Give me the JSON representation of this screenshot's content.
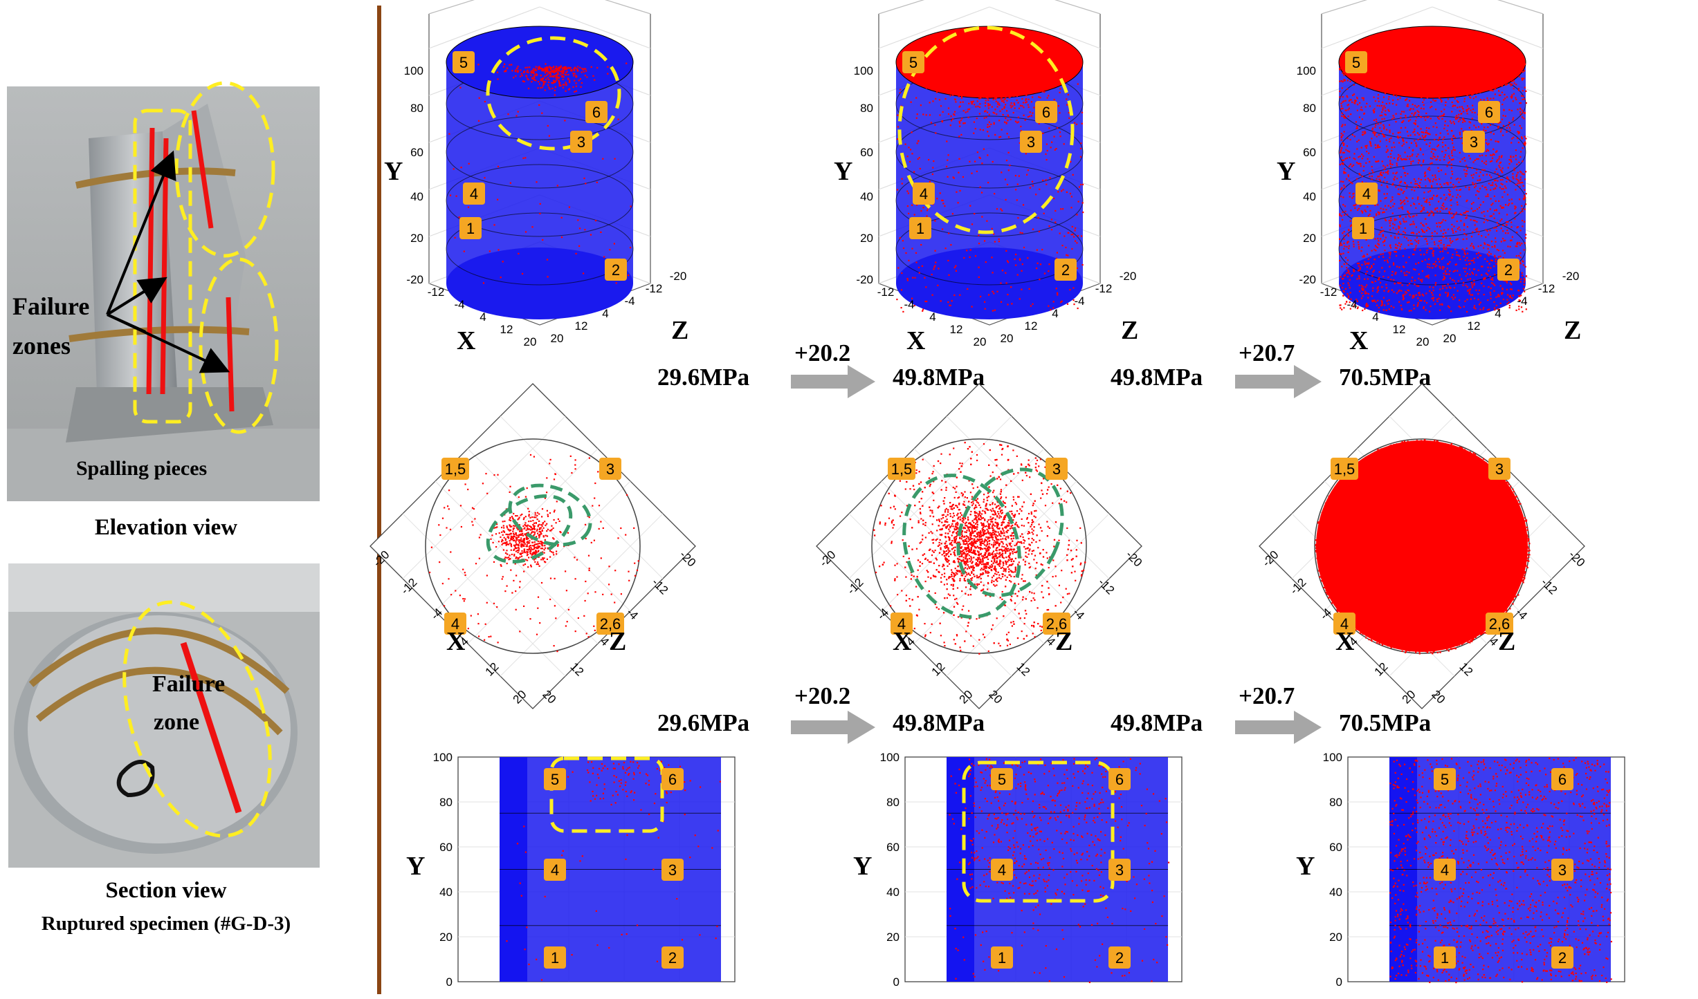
{
  "left_panel": {
    "failure_zones_line1": "Failure",
    "failure_zones_line2": "zones",
    "spalling": "Spalling pieces",
    "elevation_caption": "Elevation view",
    "failure_zone_line1": "Failure",
    "failure_zone_line2": "zone",
    "section_caption": "Section view",
    "specimen_caption": "Ruptured specimen (#G-D-3)"
  },
  "axes": {
    "x": "X",
    "y": "Y",
    "z": "Z",
    "y_ticks": [
      "-20",
      "20",
      "40",
      "60",
      "80",
      "100"
    ],
    "xz_ticks_3d": [
      "-12",
      "-4",
      "4",
      "12",
      "20"
    ],
    "z_ticks_3d": [
      "-20",
      "-12",
      "-4",
      "4",
      "12",
      "20"
    ],
    "plan_ticks_left": [
      "-20",
      "-12",
      "-4",
      "4",
      "12",
      "20"
    ],
    "plan_ticks_right": [
      "-20",
      "-12",
      "-4",
      "4",
      "12",
      "20"
    ],
    "elev_y_ticks": [
      "0",
      "20",
      "40",
      "60",
      "80",
      "100"
    ]
  },
  "transitions": {
    "row1": {
      "a_from": "29.6MPa",
      "a_inc": "+20.2",
      "a_to": "49.8MPa",
      "b_from": "49.8MPa",
      "b_inc": "+20.7",
      "b_to": "70.5MPa"
    },
    "row2": {
      "a_from": "29.6MPa",
      "a_inc": "+20.2",
      "a_to": "49.8MPa",
      "b_from": "49.8MPa",
      "b_inc": "+20.7",
      "b_to": "70.5MPa"
    }
  },
  "sensors_3d": [
    "1",
    "2",
    "3",
    "4",
    "5",
    "6"
  ],
  "sensors_plan": [
    "1,5",
    "3",
    "4",
    "2,6"
  ],
  "sensors_elev": [
    "5",
    "6",
    "4",
    "3",
    "1",
    "2"
  ],
  "colors": {
    "cylinder": "#1a1aee",
    "events": "#ff0000",
    "badge": "#f5a623",
    "dashed_yellow": "#ffee22",
    "dashed_green": "#3a9a6a",
    "divider": "#8b4513",
    "arrow": "#a6a6a6"
  }
}
